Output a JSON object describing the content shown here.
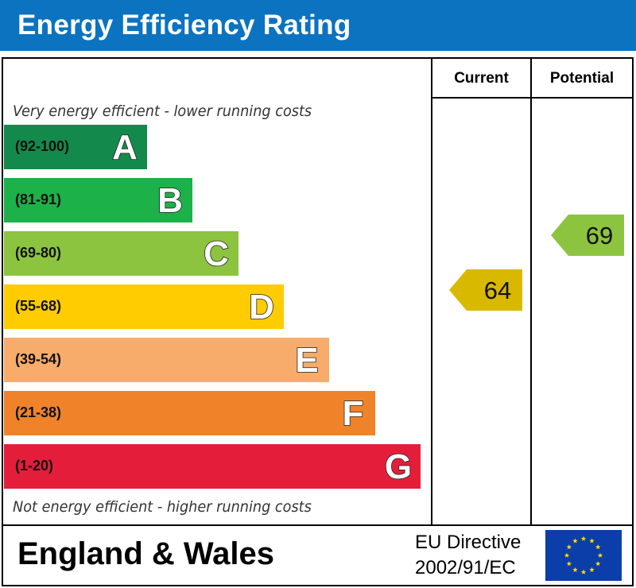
{
  "header": {
    "title": "Energy Efficiency Rating"
  },
  "columns": {
    "current_label": "Current",
    "potential_label": "Potential"
  },
  "captions": {
    "top": "Very energy efficient - lower running costs",
    "bottom": "Not energy efficient - higher running costs"
  },
  "footer": {
    "region": "England & Wales",
    "directive_line1": "EU Directive",
    "directive_line2": "2002/91/EC",
    "flag_icon": "eu-flag-icon"
  },
  "chart_data": {
    "type": "table",
    "title": "Energy Efficiency Rating",
    "bands": [
      {
        "letter": "A",
        "range": "(92-100)",
        "color": "#138a4b"
      },
      {
        "letter": "B",
        "range": "(81-91)",
        "color": "#1db14a"
      },
      {
        "letter": "C",
        "range": "(69-80)",
        "color": "#8cc43f"
      },
      {
        "letter": "D",
        "range": "(55-68)",
        "color": "#ffcc02"
      },
      {
        "letter": "E",
        "range": "(39-54)",
        "color": "#f7ac6b"
      },
      {
        "letter": "F",
        "range": "(21-38)",
        "color": "#f0832a"
      },
      {
        "letter": "G",
        "range": "(1-20)",
        "color": "#e41e3a"
      }
    ],
    "current": {
      "value": 64,
      "band": "D",
      "color": "#d8b900"
    },
    "potential": {
      "value": 69,
      "band": "C",
      "color": "#8cc43f"
    }
  }
}
